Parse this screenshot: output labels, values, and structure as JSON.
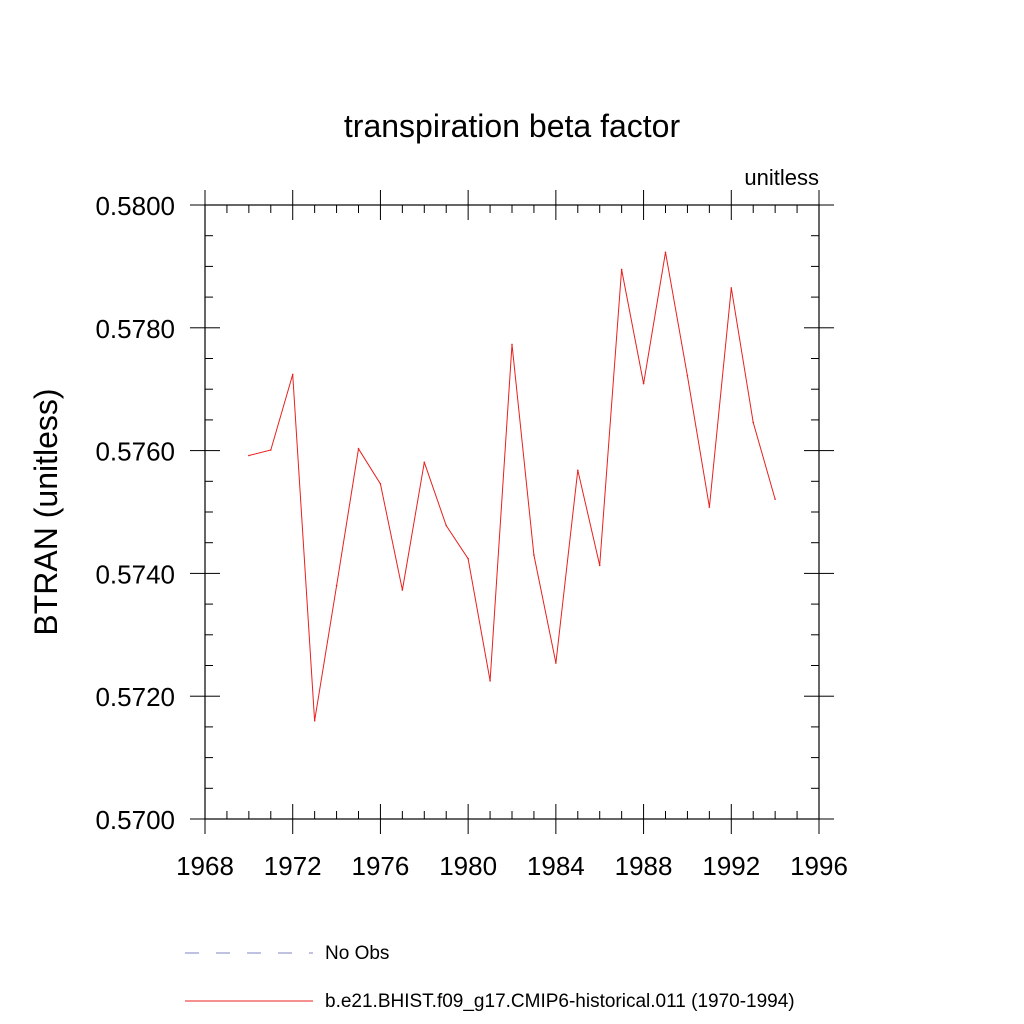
{
  "chart_data": {
    "type": "line",
    "title": "transpiration beta factor",
    "subtitle": "unitless",
    "ylabel": "BTRAN  (unitless)",
    "xlabel": "",
    "xlim": [
      1968,
      1996
    ],
    "ylim": [
      0.57,
      0.58
    ],
    "x_ticks": [
      1968,
      1972,
      1976,
      1980,
      1984,
      1988,
      1992,
      1996
    ],
    "x_tick_labels": [
      "1968",
      "1972",
      "1976",
      "1980",
      "1984",
      "1988",
      "1992",
      "1996"
    ],
    "y_ticks": [
      0.57,
      0.572,
      0.574,
      0.576,
      0.578,
      0.58
    ],
    "y_tick_labels": [
      "0.5700",
      "0.5720",
      "0.5740",
      "0.5760",
      "0.5780",
      "0.5800"
    ],
    "grid": false,
    "legend_position": "bottom",
    "series": [
      {
        "name": "b.e21.BHIST.f09_g17.CMIP6-historical.011 (1970-1994)",
        "color": "#e8201e",
        "style": "solid",
        "x": [
          1970,
          1971,
          1972,
          1973,
          1974,
          1975,
          1976,
          1977,
          1978,
          1979,
          1980,
          1981,
          1982,
          1983,
          1984,
          1985,
          1986,
          1987,
          1988,
          1989,
          1990,
          1991,
          1992,
          1993,
          1994
        ],
        "values": [
          0.57592,
          0.57601,
          0.57724,
          0.5716,
          0.5738,
          0.57603,
          0.57546,
          0.57373,
          0.57581,
          0.57478,
          0.57424,
          0.57225,
          0.57773,
          0.5743,
          0.57254,
          0.57568,
          0.57413,
          0.57895,
          0.57709,
          0.57923,
          0.57722,
          0.57508,
          0.57865,
          0.57646,
          0.57521
        ]
      }
    ],
    "legend": [
      {
        "label": "No Obs",
        "color": "#8080c0",
        "style": "dashed"
      },
      {
        "label": "b.e21.BHIST.f09_g17.CMIP6-historical.011 (1970-1994)",
        "color": "#e8201e",
        "style": "solid"
      }
    ]
  }
}
